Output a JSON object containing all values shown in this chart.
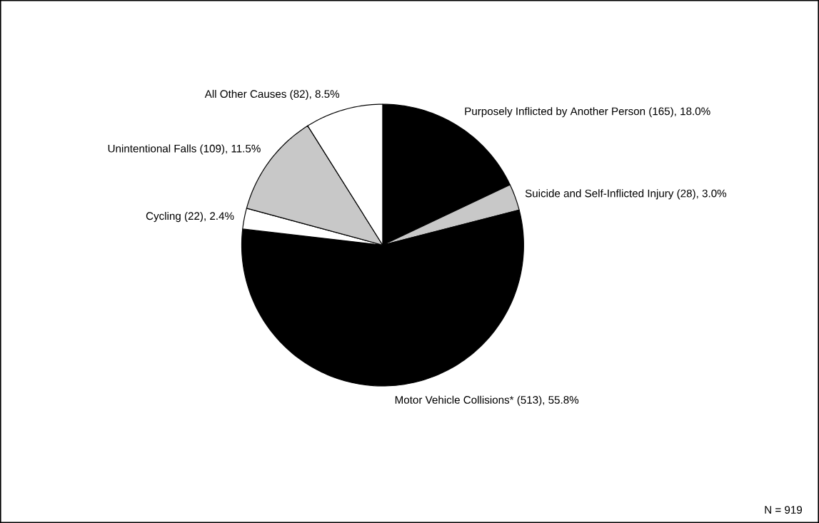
{
  "chart_data": {
    "type": "pie",
    "categories": [
      "Purposely Inflicted by Another Person (165), 18.0%",
      "Suicide and Self-Inflicted Injury (28), 3.0%",
      "Motor Vehicle Collisions* (513), 55.8%",
      "Cycling (22), 2.4%",
      "Unintentional Falls (109), 11.5%",
      "All Other Causes (82), 8.5%"
    ],
    "values": [
      165,
      28,
      513,
      22,
      109,
      82
    ],
    "colors": [
      "#000000",
      "#c8c8c8",
      "#000000",
      "#ffffff",
      "#c8c8c8",
      "#ffffff"
    ],
    "annotations": [
      "N = 919"
    ]
  }
}
